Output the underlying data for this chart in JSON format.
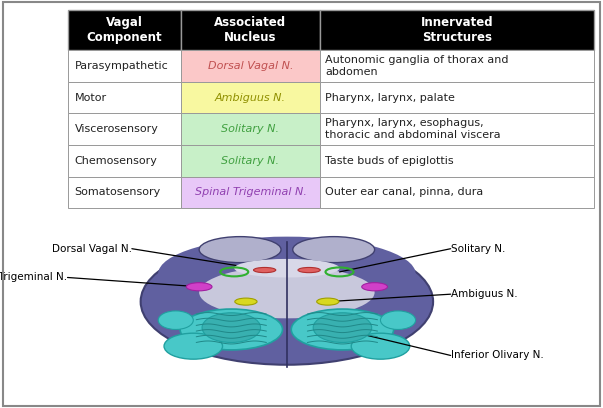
{
  "table": {
    "col_headers": [
      "Vagal\nComponent",
      "Associated\nNucleus",
      "Innervated\nStructures"
    ],
    "header_bg": "#000000",
    "header_fg": "#ffffff",
    "rows": [
      {
        "component": "Parasympathetic",
        "nucleus": "Dorsal Vagal N.",
        "nucleus_bg": "#fbc8c8",
        "nucleus_fg": "#c05050",
        "structures": "Autonomic ganglia of thorax and\nabdomen"
      },
      {
        "component": "Motor",
        "nucleus": "Ambiguus N.",
        "nucleus_bg": "#f8f8a0",
        "nucleus_fg": "#909000",
        "structures": "Pharynx, larynx, palate"
      },
      {
        "component": "Viscerosensory",
        "nucleus": "Solitary N.",
        "nucleus_bg": "#c8f0c8",
        "nucleus_fg": "#40a040",
        "structures": "Pharynx, larynx, esophagus,\nthoracic and abdominal viscera"
      },
      {
        "component": "Chemosensory",
        "nucleus": "Solitary N.",
        "nucleus_bg": "#c8f0c8",
        "nucleus_fg": "#40a040",
        "structures": "Taste buds of epiglottis"
      },
      {
        "component": "Somatosensory",
        "nucleus": "Spinal Trigeminal N.",
        "nucleus_bg": "#e8c8f8",
        "nucleus_fg": "#9040b0",
        "structures": "Outer ear canal, pinna, dura"
      }
    ],
    "row_bg": "#ffffff",
    "border_color": "#999999"
  },
  "bg_color": "#ffffff",
  "font_size_header": 8.5,
  "font_size_cell": 8.0,
  "font_size_label": 7.5
}
